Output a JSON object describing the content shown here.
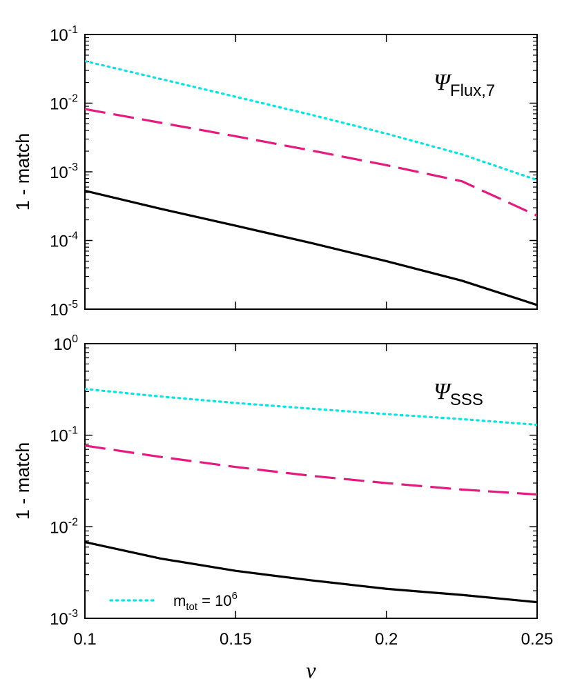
{
  "chart_data": [
    {
      "type": "line",
      "panel_label": "Ψ",
      "panel_label_subscript": "Flux,7",
      "ylabel": "1 - match",
      "xlabel": "",
      "xlim": [
        0.1,
        0.25
      ],
      "ylim": [
        1e-05,
        0.1
      ],
      "yscale": "log",
      "x_ticks": [
        0.1,
        0.15,
        0.2,
        0.25
      ],
      "y_ticks": [
        {
          "value": 1e-05,
          "base": "10",
          "exp": "-5"
        },
        {
          "value": 0.0001,
          "base": "10",
          "exp": "-4"
        },
        {
          "value": 0.001,
          "base": "10",
          "exp": "-3"
        },
        {
          "value": 0.01,
          "base": "10",
          "exp": "-2"
        },
        {
          "value": 0.1,
          "base": "10",
          "exp": "-1"
        }
      ],
      "series": [
        {
          "style": "dotted",
          "color": "#00e5e5",
          "x": [
            0.1,
            0.125,
            0.15,
            0.175,
            0.2,
            0.225,
            0.25
          ],
          "y": [
            0.041,
            0.0226,
            0.0124,
            0.0068,
            0.0036,
            0.0018,
            0.00076
          ]
        },
        {
          "style": "dashed",
          "color": "#e6197f",
          "x": [
            0.1,
            0.125,
            0.15,
            0.175,
            0.2,
            0.225,
            0.25
          ],
          "y": [
            0.0082,
            0.0052,
            0.0033,
            0.00205,
            0.00125,
            0.00073,
            0.00023
          ]
        },
        {
          "style": "solid",
          "color": "#000000",
          "x": [
            0.1,
            0.125,
            0.15,
            0.175,
            0.2,
            0.225,
            0.25
          ],
          "y": [
            0.00053,
            0.00029,
            0.000164,
            9.2e-05,
            5e-05,
            2.6e-05,
            1.15e-05
          ]
        }
      ]
    },
    {
      "type": "line",
      "panel_label": "Ψ",
      "panel_label_subscript": "SSS",
      "ylabel": "1 - match",
      "xlabel": "ν",
      "xlim": [
        0.1,
        0.25
      ],
      "ylim": [
        0.001,
        1.0
      ],
      "yscale": "log",
      "x_ticks": [
        0.1,
        0.15,
        0.2,
        0.25
      ],
      "x_tick_labels": [
        "0.1",
        "0.15",
        "0.2",
        "0.25"
      ],
      "y_ticks": [
        {
          "value": 0.001,
          "base": "10",
          "exp": "-3"
        },
        {
          "value": 0.01,
          "base": "10",
          "exp": "-2"
        },
        {
          "value": 0.1,
          "base": "10",
          "exp": "-1"
        },
        {
          "value": 1.0,
          "base": "10",
          "exp": "0"
        }
      ],
      "legend": {
        "position": "bottom-left",
        "entries": [
          {
            "style": "dotted",
            "color": "#00e5e5",
            "text": "m",
            "sub": "tot",
            "text2": " = 10",
            "sup": "6"
          }
        ]
      },
      "series": [
        {
          "style": "dotted",
          "color": "#00e5e5",
          "x": [
            0.1,
            0.125,
            0.15,
            0.175,
            0.2,
            0.225,
            0.25
          ],
          "y": [
            0.32,
            0.265,
            0.225,
            0.195,
            0.17,
            0.15,
            0.13
          ]
        },
        {
          "style": "dashed",
          "color": "#e6197f",
          "x": [
            0.1,
            0.125,
            0.15,
            0.175,
            0.2,
            0.225,
            0.25
          ],
          "y": [
            0.077,
            0.058,
            0.045,
            0.036,
            0.03,
            0.0255,
            0.0225
          ]
        },
        {
          "style": "solid",
          "color": "#000000",
          "x": [
            0.1,
            0.125,
            0.15,
            0.175,
            0.2,
            0.225,
            0.25
          ],
          "y": [
            0.0068,
            0.0045,
            0.0033,
            0.0026,
            0.0021,
            0.0018,
            0.0015
          ]
        }
      ]
    }
  ]
}
